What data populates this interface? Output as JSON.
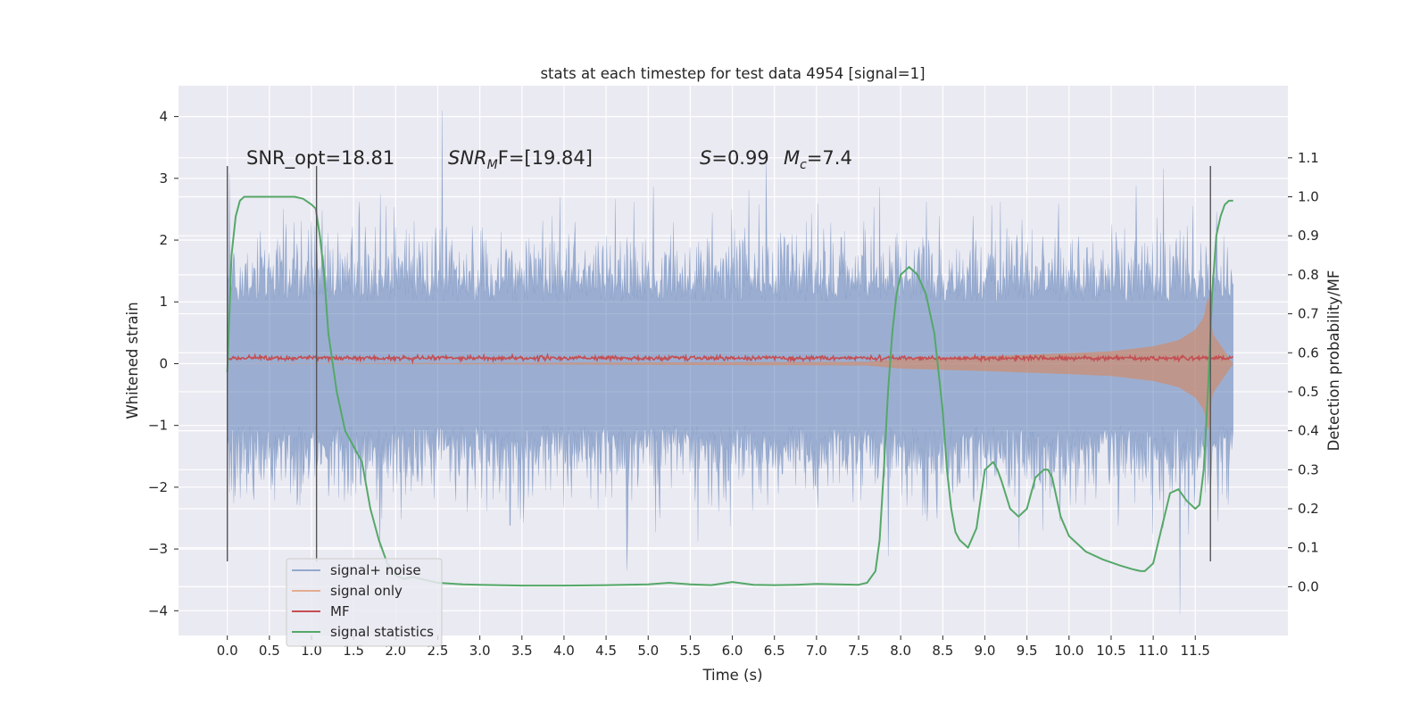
{
  "chart_data": {
    "type": "line",
    "title": "stats at each timestep for test data 4954 [signal=1]",
    "xlabel": "Time (s)",
    "ylabel": "Whitened strain",
    "y2label": "Detection probability/MF",
    "xlim": [
      -0.58,
      12.6
    ],
    "ylim": [
      -4.4,
      4.5
    ],
    "y2lim": [
      -0.125,
      1.285
    ],
    "x_ticks": [
      0.0,
      0.5,
      1.0,
      1.5,
      2.0,
      2.5,
      3.0,
      3.5,
      4.0,
      4.5,
      5.0,
      5.5,
      6.0,
      6.5,
      7.0,
      7.5,
      8.0,
      8.5,
      9.0,
      9.5,
      10.0,
      10.5,
      11.0,
      11.5
    ],
    "x_tick_labels": [
      "0.0",
      "0.5",
      "1.0",
      "1.5",
      "2.0",
      "2.5",
      "3.0",
      "3.5",
      "4.0",
      "4.5",
      "5.0",
      "5.5",
      "6.0",
      "6.5",
      "7.0",
      "7.5",
      "8.0",
      "8.5",
      "9.0",
      "9.5",
      "10.0",
      "10.5",
      "11.0",
      "11.5"
    ],
    "y_ticks": [
      -4,
      -3,
      -2,
      -1,
      0,
      1,
      2,
      3,
      4
    ],
    "y_tick_labels": [
      "−4",
      "−3",
      "−2",
      "−1",
      "0",
      "1",
      "2",
      "3",
      "4"
    ],
    "y2_ticks": [
      0.0,
      0.1,
      0.2,
      0.3,
      0.4,
      0.5,
      0.6,
      0.7,
      0.8,
      0.9,
      1.0,
      1.1
    ],
    "y2_tick_labels": [
      "0.0",
      "0.1",
      "0.2",
      "0.3",
      "0.4",
      "0.5",
      "0.6",
      "0.7",
      "0.8",
      "0.9",
      "1.0",
      "1.1"
    ],
    "grid": true,
    "legend_position": "lower-left",
    "legend": [
      {
        "name": "signal+ noise",
        "color": "#4c72b0"
      },
      {
        "name": "signal only",
        "color": "#dd8452"
      },
      {
        "name": "MF",
        "color": "#c44e52"
      },
      {
        "name": "signal statistics",
        "color": "#55a868"
      }
    ],
    "annotations": {
      "snr_opt": "SNR_opt=18.81",
      "snr_mf_sym": "SNR",
      "snr_mf_sub": "M",
      "snr_mf_rest": "F=[19.84]",
      "s_sym": "S",
      "s_val": "=0.99",
      "mc_sym": "M",
      "mc_sub": "c",
      "mc_val": "=7.4"
    },
    "vlines": [
      {
        "x": 0.0,
        "y_range": [
          -3.2,
          3.2
        ]
      },
      {
        "x": 1.06,
        "y_range": [
          -3.2,
          3.2
        ]
      },
      {
        "x": 11.68,
        "y_range": [
          -3.2,
          3.2
        ]
      }
    ],
    "series": [
      {
        "name": "signal+ noise",
        "color": "#4c72b0",
        "t_range": [
          0.0,
          11.95
        ],
        "envelope_typical": 1.3,
        "max_value": 4.1,
        "min_value": -4.05
      },
      {
        "name": "signal only",
        "color": "#dd8452",
        "amplitude": {
          "t": [
            0.0,
            7.6,
            8.0,
            9.0,
            10.0,
            10.5,
            11.0,
            11.3,
            11.5,
            11.6,
            11.66,
            11.7,
            11.95
          ],
          "a": [
            0.0,
            0.03,
            0.08,
            0.12,
            0.17,
            0.2,
            0.28,
            0.38,
            0.55,
            0.75,
            1.15,
            0.5,
            0.0
          ]
        }
      },
      {
        "name": "MF",
        "color": "#c44e52",
        "level": 0.09,
        "t_range": [
          0.0,
          11.95
        ]
      },
      {
        "name": "signal statistics",
        "color": "#55a868",
        "x": [
          0.0,
          0.05,
          0.1,
          0.15,
          0.2,
          0.3,
          0.5,
          0.8,
          0.9,
          1.0,
          1.05,
          1.1,
          1.15,
          1.2,
          1.3,
          1.4,
          1.5,
          1.6,
          1.7,
          1.8,
          1.9,
          2.0,
          2.1,
          2.2,
          2.3,
          2.5,
          2.8,
          3.0,
          3.5,
          4.0,
          4.5,
          5.0,
          5.25,
          5.5,
          5.75,
          6.0,
          6.25,
          6.5,
          6.75,
          7.0,
          7.25,
          7.5,
          7.6,
          7.7,
          7.75,
          7.8,
          7.85,
          7.9,
          7.95,
          8.0,
          8.05,
          8.1,
          8.2,
          8.3,
          8.4,
          8.5,
          8.55,
          8.6,
          8.65,
          8.7,
          8.75,
          8.8,
          8.9,
          9.0,
          9.1,
          9.15,
          9.2,
          9.3,
          9.4,
          9.5,
          9.6,
          9.7,
          9.75,
          9.8,
          9.9,
          10.0,
          10.2,
          10.4,
          10.6,
          10.75,
          10.85,
          10.9,
          11.0,
          11.1,
          11.2,
          11.3,
          11.4,
          11.5,
          11.55,
          11.6,
          11.65,
          11.7,
          11.75,
          11.8,
          11.85,
          11.9,
          11.95
        ],
        "y": [
          0.55,
          0.85,
          0.95,
          0.99,
          1.0,
          1.0,
          1.0,
          1.0,
          0.995,
          0.98,
          0.97,
          0.9,
          0.8,
          0.65,
          0.5,
          0.4,
          0.36,
          0.32,
          0.2,
          0.12,
          0.06,
          0.03,
          0.02,
          0.025,
          0.02,
          0.01,
          0.006,
          0.005,
          0.003,
          0.003,
          0.004,
          0.006,
          0.01,
          0.006,
          0.004,
          0.012,
          0.005,
          0.004,
          0.005,
          0.007,
          0.006,
          0.005,
          0.01,
          0.04,
          0.12,
          0.3,
          0.5,
          0.65,
          0.75,
          0.8,
          0.81,
          0.82,
          0.8,
          0.75,
          0.65,
          0.45,
          0.3,
          0.2,
          0.14,
          0.12,
          0.11,
          0.1,
          0.15,
          0.3,
          0.32,
          0.3,
          0.27,
          0.2,
          0.18,
          0.2,
          0.28,
          0.3,
          0.3,
          0.28,
          0.18,
          0.13,
          0.09,
          0.07,
          0.055,
          0.045,
          0.04,
          0.04,
          0.06,
          0.15,
          0.24,
          0.25,
          0.22,
          0.2,
          0.21,
          0.3,
          0.5,
          0.75,
          0.9,
          0.95,
          0.98,
          0.99,
          0.99
        ]
      }
    ]
  }
}
